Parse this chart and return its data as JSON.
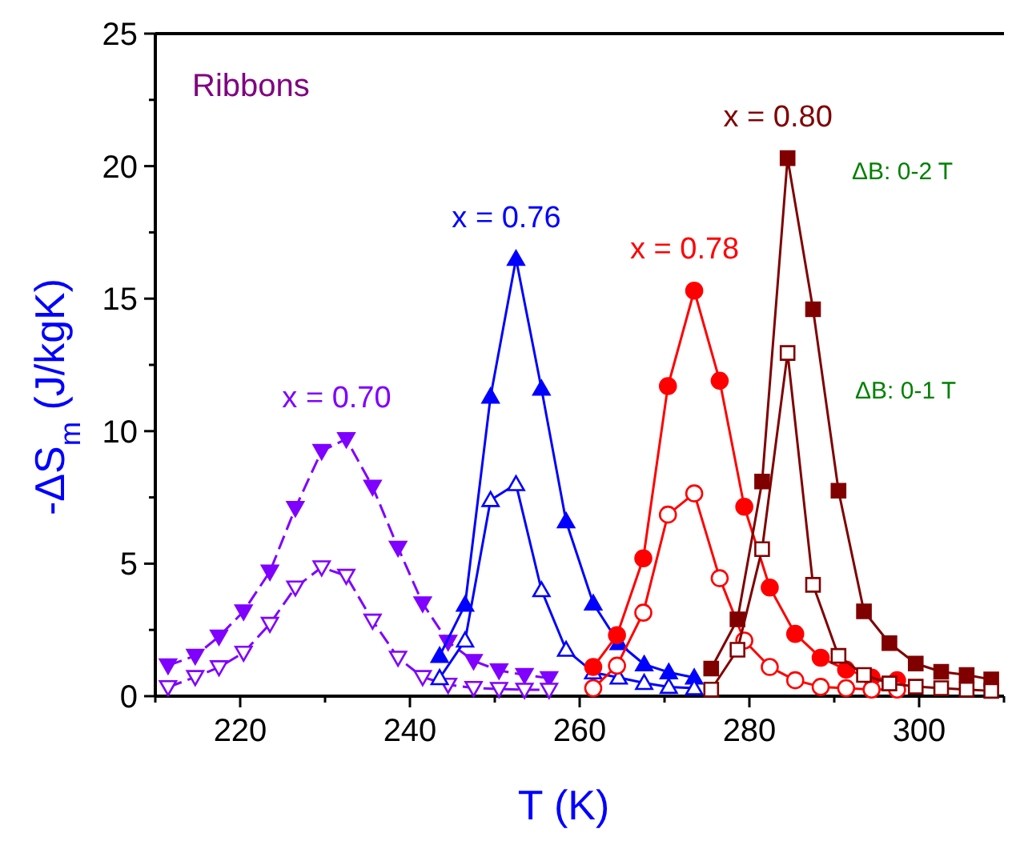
{
  "chart_data": {
    "type": "line",
    "xlabel": "T (K)",
    "ylabel": "-ΔS$_{m}$ (J/kgK)",
    "xlim": [
      210,
      310
    ],
    "xticks": [
      {
        "value": 210,
        "label": null
      },
      220,
      {
        "value": 230,
        "label": null
      },
      240,
      {
        "value": 250,
        "label": null
      },
      260,
      {
        "value": 270,
        "label": null
      },
      280,
      {
        "value": 290,
        "label": null
      },
      300,
      {
        "value": 310,
        "label": null
      }
    ],
    "ylim": [
      0,
      25
    ],
    "yticks": [
      0,
      {
        "value": 2.5,
        "label": null
      },
      5,
      {
        "value": 7.5,
        "label": null
      },
      10,
      {
        "value": 12.5,
        "label": null
      },
      15,
      {
        "value": 17.5,
        "label": null
      },
      20,
      {
        "value": 22.5,
        "label": null
      },
      25
    ],
    "grid": false,
    "annotations": [
      "Ribbons",
      "ΔB: 0-2 T",
      "ΔB: 0-1 T"
    ],
    "series": [
      {
        "name": "x = 0.70",
        "color": "#7f00ff",
        "marker": "triangle-down",
        "line_style": "dashed",
        "x": [
          211.5,
          214.7,
          217.5,
          220.4,
          223.5,
          226.5,
          229.6,
          232.5,
          235.6,
          238.6,
          241.5,
          244.5,
          247.5,
          250.5,
          253.5,
          256.4
        ],
        "values": [
          1.16,
          1.52,
          2.25,
          3.2,
          4.7,
          7.1,
          9.25,
          9.7,
          7.9,
          5.6,
          3.5,
          2.05,
          1.33,
          0.97,
          0.8,
          0.68
        ]
      },
      {
        "color": "#7f00ff",
        "marker": "triangle-down",
        "line_style": "dashed",
        "x": [
          211.5,
          214.7,
          217.5,
          220.4,
          223.5,
          226.5,
          229.6,
          232.5,
          235.6,
          238.6,
          241.5,
          244.5,
          247.5,
          250.5,
          253.5,
          256.4
        ],
        "values": [
          0.34,
          0.72,
          1.09,
          1.64,
          2.73,
          4.1,
          4.86,
          4.54,
          2.85,
          1.45,
          0.72,
          0.43,
          0.31,
          0.27,
          0.24,
          0.24
        ]
      },
      {
        "name": "x = 0.76",
        "color": "#0000ff",
        "marker": "triangle",
        "line_style": "solid",
        "x": [
          243.5,
          246.5,
          249.5,
          252.5,
          255.5,
          258.4,
          261.6,
          264.6,
          267.6,
          270.5,
          273.5
        ],
        "values": [
          1.52,
          3.45,
          11.3,
          16.5,
          11.6,
          6.6,
          3.5,
          2.0,
          1.2,
          0.9,
          0.7
        ]
      },
      {
        "color": "#0000ff",
        "marker": "triangle",
        "line_style": "solid",
        "x": [
          243.5,
          246.5,
          249.5,
          252.5,
          255.5,
          258.4,
          261.6,
          264.6,
          267.6,
          270.5,
          273.5
        ],
        "values": [
          0.68,
          2.1,
          7.4,
          8.0,
          4.0,
          1.75,
          0.9,
          0.7,
          0.5,
          0.35,
          0.3
        ]
      },
      {
        "name": "x = 0.78",
        "color": "#ff0000",
        "marker": "circle",
        "line_style": "solid",
        "x": [
          261.6,
          264.4,
          267.5,
          270.4,
          273.5,
          276.5,
          279.4,
          282.4,
          285.4,
          288.4,
          291.4,
          294.4,
          297.4
        ],
        "values": [
          1.1,
          2.3,
          5.2,
          11.7,
          15.3,
          11.9,
          7.15,
          4.1,
          2.35,
          1.45,
          1.0,
          0.7,
          0.6
        ]
      },
      {
        "color": "#ff0000",
        "marker": "circle",
        "line_style": "solid",
        "x": [
          261.6,
          264.4,
          267.5,
          270.4,
          273.5,
          276.5,
          279.4,
          282.4,
          285.4,
          288.4,
          291.4,
          294.4,
          297.4
        ],
        "values": [
          0.3,
          1.15,
          3.15,
          6.85,
          7.65,
          4.45,
          2.1,
          1.1,
          0.6,
          0.35,
          0.3,
          0.25,
          0.25
        ]
      },
      {
        "name": "x = 0.80",
        "color": "#800000",
        "marker": "square",
        "line_style": "solid",
        "x": [
          275.5,
          278.6,
          281.5,
          284.5,
          287.5,
          290.5,
          293.5,
          296.5,
          299.6,
          302.6,
          305.6,
          308.5
        ],
        "values": [
          1.04,
          2.9,
          8.1,
          20.3,
          14.6,
          7.75,
          3.2,
          2.0,
          1.23,
          0.92,
          0.8,
          0.63
        ]
      },
      {
        "color": "#800000",
        "marker": "square",
        "line_style": "solid",
        "x": [
          275.5,
          278.6,
          281.5,
          284.5,
          287.5,
          290.5,
          293.5,
          296.5,
          299.6,
          302.6,
          305.6,
          308.5
        ],
        "values": [
          0.25,
          1.75,
          5.55,
          12.95,
          4.2,
          1.52,
          0.8,
          0.48,
          0.36,
          0.3,
          0.25,
          0.2
        ]
      }
    ]
  }
}
